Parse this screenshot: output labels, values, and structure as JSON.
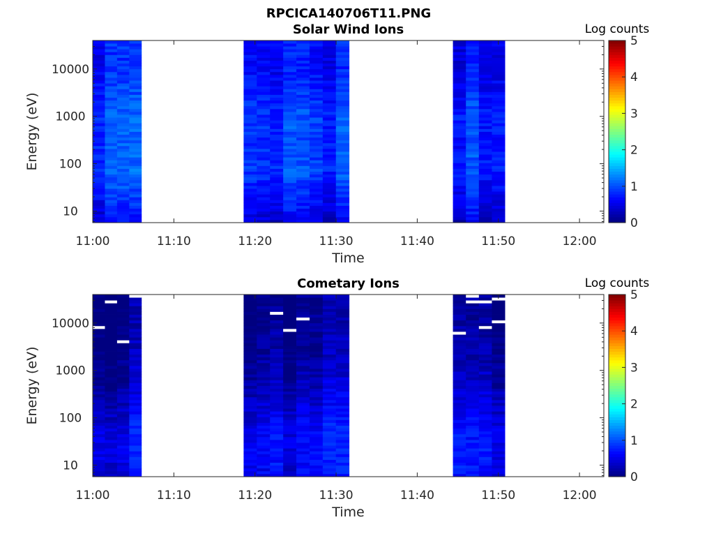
{
  "figure": {
    "title": "RPCICA140706T11.PNG"
  },
  "chart_data": [
    {
      "type": "heatmap",
      "title": "Solar Wind Ions",
      "xlabel": "Time",
      "ylabel": "Energy (eV)",
      "x_tick_labels": [
        "11:00",
        "11:10",
        "11:20",
        "11:30",
        "11:40",
        "11:50",
        "12:00"
      ],
      "x_ticks_minutes": [
        0,
        10,
        20,
        30,
        40,
        50,
        60
      ],
      "xlim_minutes": [
        0,
        63
      ],
      "y_scale": "log",
      "y_tick_labels": [
        "10",
        "100",
        "1000",
        "10000"
      ],
      "y_ticks": [
        10,
        100,
        1000,
        10000
      ],
      "ylim": [
        5.7,
        40000
      ],
      "colorbar": {
        "label": "Log counts",
        "range": [
          0,
          5
        ],
        "ticks": [
          "0",
          "1",
          "2",
          "3",
          "4",
          "5"
        ],
        "colormap": "jet"
      },
      "data_blocks_minutes": [
        [
          0,
          6
        ],
        [
          18.6,
          31.6
        ],
        [
          44.4,
          50.8
        ]
      ],
      "value_profile": [
        0.5,
        0.75,
        0.95,
        0.9,
        0.95,
        0.8,
        0.65,
        0.7
      ],
      "value_range": [
        0.1,
        1.5
      ],
      "seed": 7
    },
    {
      "type": "heatmap",
      "title": "Cometary Ions",
      "xlabel": "Time",
      "ylabel": "Energy (eV)",
      "x_tick_labels": [
        "11:00",
        "11:10",
        "11:20",
        "11:30",
        "11:40",
        "11:50",
        "12:00"
      ],
      "x_ticks_minutes": [
        0,
        10,
        20,
        30,
        40,
        50,
        60
      ],
      "xlim_minutes": [
        0,
        63
      ],
      "y_scale": "log",
      "y_tick_labels": [
        "10",
        "100",
        "1000",
        "10000"
      ],
      "y_ticks": [
        10,
        100,
        1000,
        10000
      ],
      "ylim": [
        5.7,
        40000
      ],
      "colorbar": {
        "label": "Log counts",
        "range": [
          0,
          5
        ],
        "ticks": [
          "0",
          "1",
          "2",
          "3",
          "4",
          "5"
        ],
        "colormap": "jet"
      },
      "data_blocks_minutes": [
        [
          0,
          6
        ],
        [
          18.6,
          31.6
        ],
        [
          44.4,
          50.8
        ]
      ],
      "value_profile": [
        0.55,
        0.65,
        0.55,
        0.35,
        0.2,
        0.1,
        0.05,
        0.05
      ],
      "value_range": [
        0.0,
        0.9
      ],
      "seed": 21
    }
  ]
}
